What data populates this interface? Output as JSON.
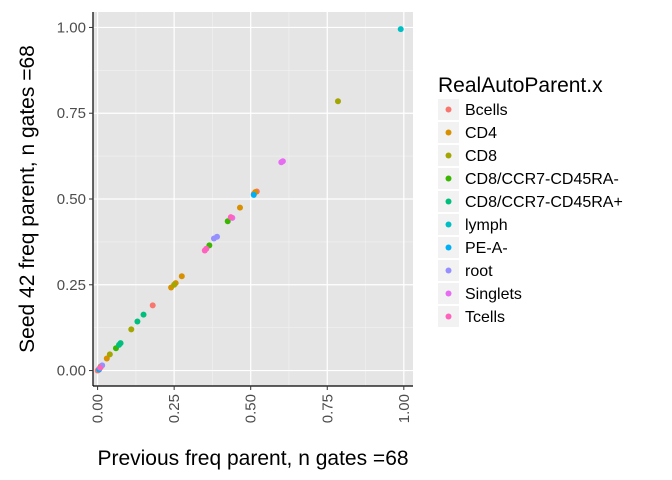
{
  "chart_data": {
    "type": "scatter",
    "xlabel": "Previous freq parent, n gates =68",
    "ylabel": "Seed 42 freq parent, n gates =68",
    "xlim": [
      -0.015,
      1.03
    ],
    "ylim": [
      -0.045,
      1.045
    ],
    "x_ticks": [
      0.0,
      0.25,
      0.5,
      0.75,
      1.0
    ],
    "x_tick_labels": [
      "0.00",
      "0.25",
      "0.50",
      "0.75",
      "1.00"
    ],
    "y_ticks": [
      0.0,
      0.25,
      0.5,
      0.75,
      1.0
    ],
    "y_tick_labels": [
      "0.00",
      "0.25",
      "0.50",
      "0.75",
      "1.00"
    ],
    "grid": true,
    "background": "#e5e5e5",
    "legend": {
      "title": "RealAutoParent.x",
      "placement": "right"
    },
    "series": [
      {
        "name": "Bcells",
        "color": "#F8766D",
        "points": [
          [
            0.0,
            0.0
          ],
          [
            0.003,
            0.002
          ],
          [
            0.005,
            0.005
          ],
          [
            0.18,
            0.19
          ],
          [
            0.51,
            0.515
          ],
          [
            0.52,
            0.522
          ]
        ]
      },
      {
        "name": "CD4",
        "color": "#D89000",
        "points": [
          [
            0.01,
            0.01
          ],
          [
            0.03,
            0.035
          ],
          [
            0.24,
            0.242
          ],
          [
            0.255,
            0.255
          ],
          [
            0.275,
            0.275
          ],
          [
            0.465,
            0.475
          ],
          [
            0.515,
            0.52
          ]
        ]
      },
      {
        "name": "CD8",
        "color": "#A3A500",
        "points": [
          [
            0.01,
            0.012
          ],
          [
            0.04,
            0.047
          ],
          [
            0.11,
            0.12
          ],
          [
            0.25,
            0.25
          ],
          [
            0.785,
            0.785
          ]
        ]
      },
      {
        "name": "CD8/CCR7-CD45RA-",
        "color": "#39B600",
        "points": [
          [
            0.06,
            0.065
          ],
          [
            0.365,
            0.365
          ],
          [
            0.425,
            0.435
          ]
        ]
      },
      {
        "name": "CD8/CCR7-CD45RA+",
        "color": "#00BF7D",
        "points": [
          [
            0.07,
            0.075
          ],
          [
            0.075,
            0.08
          ],
          [
            0.13,
            0.143
          ],
          [
            0.15,
            0.163
          ]
        ]
      },
      {
        "name": "lymph",
        "color": "#00BFC4",
        "points": [
          [
            0.99,
            0.995
          ]
        ]
      },
      {
        "name": "PE-A-",
        "color": "#00B0F6",
        "points": [
          [
            0.51,
            0.512
          ],
          [
            0.005,
            0.003
          ]
        ]
      },
      {
        "name": "root",
        "color": "#9590FF",
        "points": [
          [
            0.38,
            0.385
          ],
          [
            0.39,
            0.39
          ],
          [
            0.015,
            0.015
          ]
        ]
      },
      {
        "name": "Singlets",
        "color": "#E76BF3",
        "points": [
          [
            0.6,
            0.607
          ],
          [
            0.605,
            0.61
          ],
          [
            0.44,
            0.445
          ]
        ]
      },
      {
        "name": "Tcells",
        "color": "#FF62BC",
        "points": [
          [
            0.35,
            0.35
          ],
          [
            0.355,
            0.355
          ],
          [
            0.435,
            0.447
          ],
          [
            0.008,
            0.008
          ]
        ]
      }
    ]
  }
}
